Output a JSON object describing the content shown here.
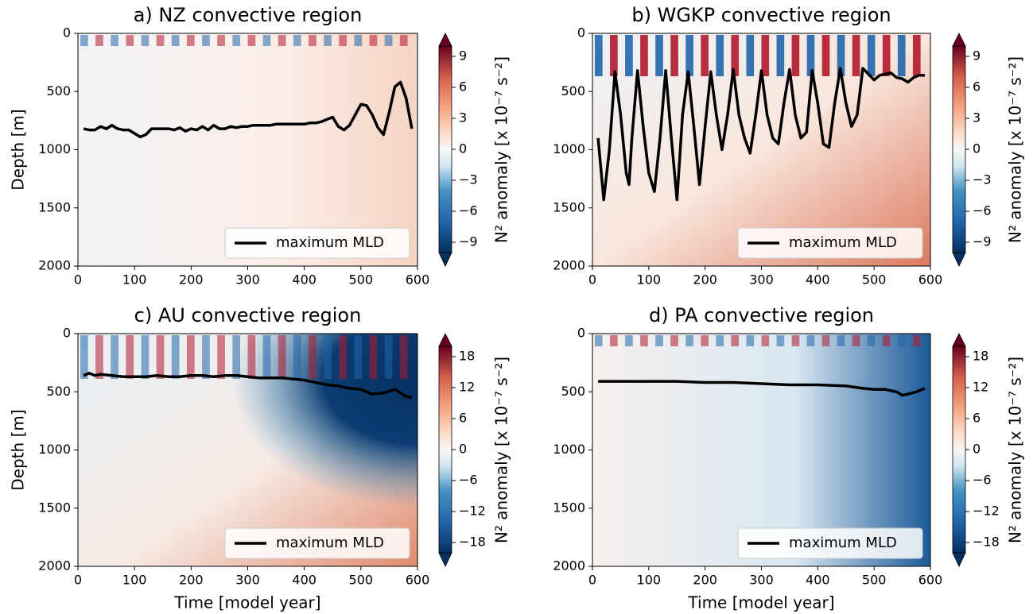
{
  "chart_data": [
    {
      "type": "line",
      "title": "a) NZ convective region",
      "ylabel": "Depth [m]",
      "xlim": [
        0,
        600
      ],
      "xticks": [
        0,
        100,
        200,
        300,
        400,
        500,
        600
      ],
      "ylim": [
        2000,
        0
      ],
      "yticks": [
        0,
        500,
        1000,
        1500,
        2000
      ],
      "colorbar": {
        "label": "N² anomaly [x 10⁻⁷ s⁻²]",
        "lim": [
          -10,
          10
        ],
        "ticks": [
          {
            "value": -9,
            "label": "−9"
          },
          {
            "value": -6,
            "label": "−6"
          },
          {
            "value": -3,
            "label": "−3"
          },
          0,
          3,
          6,
          9
        ]
      },
      "legend": "lower right",
      "x": [
        10,
        20,
        30,
        40,
        50,
        60,
        70,
        80,
        90,
        100,
        110,
        120,
        130,
        140,
        150,
        160,
        170,
        180,
        190,
        200,
        210,
        220,
        230,
        240,
        250,
        260,
        270,
        280,
        290,
        300,
        310,
        320,
        330,
        340,
        350,
        360,
        370,
        380,
        390,
        400,
        410,
        420,
        430,
        440,
        450,
        460,
        470,
        480,
        490,
        500,
        510,
        520,
        530,
        540,
        550,
        560,
        570,
        580,
        590
      ],
      "series": [
        {
          "name": "maximum MLD",
          "color": "#000000",
          "values": [
            820,
            830,
            830,
            800,
            820,
            790,
            820,
            830,
            830,
            860,
            890,
            870,
            820,
            820,
            820,
            820,
            830,
            810,
            840,
            820,
            830,
            800,
            830,
            790,
            820,
            820,
            800,
            810,
            800,
            800,
            790,
            790,
            790,
            790,
            780,
            780,
            780,
            780,
            780,
            780,
            770,
            770,
            760,
            740,
            720,
            800,
            830,
            790,
            700,
            610,
            620,
            700,
            810,
            870,
            680,
            460,
            420,
            560,
            820
          ]
        }
      ]
    },
    {
      "type": "line",
      "title": "b) WGKP convective region",
      "xlim": [
        0,
        600
      ],
      "xticks": [
        0,
        100,
        200,
        300,
        400,
        500,
        600
      ],
      "ylim": [
        2000,
        0
      ],
      "yticks": [
        0,
        500,
        1000,
        1500,
        2000
      ],
      "colorbar": {
        "label": "N² anomaly [x 10⁻⁷ s⁻²]",
        "lim": [
          -10,
          10
        ],
        "ticks": [
          {
            "value": -9,
            "label": "−9"
          },
          {
            "value": -6,
            "label": "−6"
          },
          {
            "value": -3,
            "label": "−3"
          },
          0,
          3,
          6,
          9
        ]
      },
      "legend": "lower right",
      "x": [
        10,
        20,
        30,
        40,
        50,
        60,
        65,
        70,
        80,
        90,
        100,
        110,
        120,
        130,
        140,
        150,
        160,
        170,
        180,
        190,
        200,
        210,
        220,
        230,
        240,
        250,
        260,
        270,
        280,
        290,
        300,
        310,
        320,
        330,
        340,
        350,
        360,
        370,
        380,
        390,
        400,
        410,
        420,
        430,
        440,
        450,
        460,
        470,
        480,
        490,
        500,
        510,
        520,
        530,
        540,
        550,
        560,
        570,
        580,
        590
      ],
      "series": [
        {
          "name": "maximum MLD",
          "color": "#000000",
          "values": [
            900,
            1430,
            1000,
            330,
            700,
            1200,
            1300,
            900,
            320,
            800,
            1200,
            1360,
            900,
            320,
            900,
            1430,
            700,
            330,
            800,
            1300,
            800,
            330,
            700,
            1000,
            700,
            310,
            700,
            900,
            1030,
            700,
            320,
            700,
            900,
            950,
            600,
            310,
            700,
            900,
            850,
            320,
            600,
            950,
            980,
            600,
            300,
            600,
            800,
            700,
            300,
            350,
            400,
            360,
            350,
            340,
            380,
            390,
            420,
            380,
            360,
            360
          ]
        }
      ]
    },
    {
      "type": "line",
      "title": "c) AU convective region",
      "xlabel": "Time [model year]",
      "ylabel": "Depth [m]",
      "xlim": [
        0,
        600
      ],
      "xticks": [
        0,
        100,
        200,
        300,
        400,
        500,
        600
      ],
      "ylim": [
        2000,
        0
      ],
      "yticks": [
        0,
        500,
        1000,
        1500,
        2000
      ],
      "colorbar": {
        "label": "N² anomaly [x 10⁻⁷ s⁻²]",
        "lim": [
          -20,
          20
        ],
        "ticks": [
          {
            "value": -18,
            "label": "−18"
          },
          {
            "value": -12,
            "label": "−12"
          },
          {
            "value": -6,
            "label": "−6"
          },
          0,
          6,
          12,
          18
        ]
      },
      "legend": "lower right",
      "x": [
        10,
        20,
        30,
        40,
        60,
        80,
        100,
        120,
        140,
        160,
        180,
        200,
        220,
        240,
        260,
        280,
        300,
        320,
        340,
        360,
        380,
        400,
        420,
        440,
        460,
        480,
        500,
        520,
        540,
        560,
        580,
        590
      ],
      "series": [
        {
          "name": "maximum MLD",
          "color": "#000000",
          "values": [
            360,
            340,
            360,
            350,
            360,
            370,
            370,
            370,
            360,
            370,
            370,
            360,
            360,
            370,
            360,
            360,
            370,
            380,
            380,
            380,
            390,
            400,
            420,
            440,
            450,
            470,
            480,
            520,
            510,
            480,
            540,
            550
          ]
        }
      ]
    },
    {
      "type": "line",
      "title": "d) PA convective region",
      "xlabel": "Time [model year]",
      "xlim": [
        0,
        600
      ],
      "xticks": [
        0,
        100,
        200,
        300,
        400,
        500,
        600
      ],
      "ylim": [
        2000,
        0
      ],
      "yticks": [
        0,
        500,
        1000,
        1500,
        2000
      ],
      "colorbar": {
        "label": "N² anomaly [x 10⁻⁷ s⁻²]",
        "lim": [
          -20,
          20
        ],
        "ticks": [
          {
            "value": -18,
            "label": "−18"
          },
          {
            "value": -12,
            "label": "−12"
          },
          {
            "value": -6,
            "label": "−6"
          },
          0,
          6,
          12,
          18
        ]
      },
      "legend": "lower right",
      "x": [
        10,
        50,
        100,
        150,
        200,
        250,
        300,
        350,
        400,
        450,
        480,
        500,
        520,
        540,
        550,
        560,
        575,
        590
      ],
      "series": [
        {
          "name": "maximum MLD",
          "color": "#000000",
          "values": [
            410,
            410,
            410,
            410,
            420,
            420,
            430,
            440,
            440,
            450,
            470,
            480,
            480,
            500,
            530,
            520,
            500,
            470
          ]
        }
      ]
    }
  ]
}
